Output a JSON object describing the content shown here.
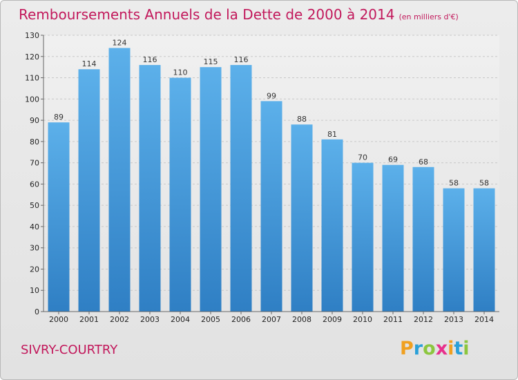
{
  "chart_data": {
    "type": "bar",
    "title": "Remboursements Annuels de la Dette de 2000 à 2014",
    "subtitle": "(en milliers d'€)",
    "categories": [
      "2000",
      "2001",
      "2002",
      "2003",
      "2004",
      "2005",
      "2006",
      "2007",
      "2008",
      "2009",
      "2010",
      "2011",
      "2012",
      "2013",
      "2014"
    ],
    "values": [
      89,
      114,
      124,
      116,
      110,
      115,
      116,
      99,
      88,
      81,
      70,
      69,
      68,
      58,
      58
    ],
    "xlabel": "",
    "ylabel": "",
    "ylim": [
      0,
      130
    ],
    "yticks": [
      0,
      10,
      20,
      30,
      40,
      50,
      60,
      70,
      80,
      90,
      100,
      110,
      120,
      130
    ],
    "grid": true,
    "bar_color": "#4a9fe0"
  },
  "footer": {
    "commune": "SIVRY-COURTRY"
  },
  "logo": {
    "letters": [
      "P",
      "r",
      "o",
      "x",
      "i",
      "t",
      "i"
    ],
    "colors": [
      "#f0a020",
      "#2aa0d8",
      "#8cc63f",
      "#e8308c",
      "#f0a020",
      "#2aa0d8",
      "#8cc63f"
    ]
  }
}
